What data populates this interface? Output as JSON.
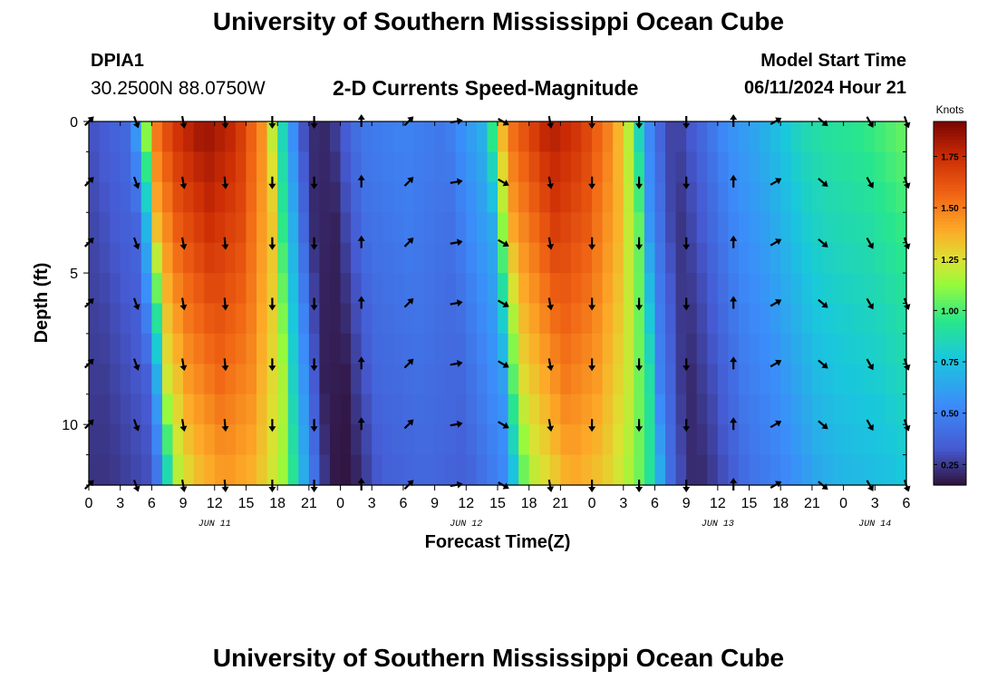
{
  "page": {
    "title": "University of Southern Mississippi Ocean Cube",
    "footer_title": "University of Southern Mississippi Ocean Cube"
  },
  "header": {
    "station_id": "DPIA1",
    "coordinates": "30.2500N  88.0750W",
    "plot_title": "2-D Currents Speed-Magnitude",
    "model_start_label": "Model Start Time",
    "model_start_value": "06/11/2024 Hour 21"
  },
  "chart_data": {
    "type": "heatmap",
    "title": "2-D Currents Speed-Magnitude",
    "xlabel": "Forecast Time(Z)",
    "ylabel": "Depth (ft)",
    "x_hours_range": [
      0,
      78
    ],
    "ylim": [
      0,
      12
    ],
    "y_ticks": [
      0,
      5,
      10
    ],
    "x_tick_labels": [
      "0",
      "3",
      "6",
      "9",
      "12",
      "15",
      "18",
      "21",
      "0",
      "3",
      "6",
      "9",
      "12",
      "15",
      "18",
      "21",
      "0",
      "3",
      "6",
      "9",
      "12",
      "15",
      "18",
      "21",
      "0",
      "3",
      "6"
    ],
    "date_labels": [
      {
        "label": "JUN 11",
        "hour": 12
      },
      {
        "label": "JUN 12",
        "hour": 36
      },
      {
        "label": "JUN 13",
        "hour": 60
      },
      {
        "label": "JUN 14",
        "hour": 75
      }
    ],
    "colorbar": {
      "unit": "Knots",
      "range": [
        0.15,
        1.92
      ],
      "ticks": [
        "0.25",
        "0.50",
        "0.75",
        "1.00",
        "1.25",
        "1.50",
        "1.75"
      ]
    },
    "surface_speed_knots_by_hour": [
      [
        0,
        0.3
      ],
      [
        4,
        0.4
      ],
      [
        5,
        0.75
      ],
      [
        6,
        1.45
      ],
      [
        8,
        1.7
      ],
      [
        11,
        1.85
      ],
      [
        14,
        1.75
      ],
      [
        17,
        1.4
      ],
      [
        18,
        1.0
      ],
      [
        19,
        0.7
      ],
      [
        20,
        0.4
      ],
      [
        21,
        0.22
      ],
      [
        23,
        0.2
      ],
      [
        24,
        0.3
      ],
      [
        26,
        0.45
      ],
      [
        30,
        0.5
      ],
      [
        34,
        0.45
      ],
      [
        38,
        0.7
      ],
      [
        39,
        1.2
      ],
      [
        40,
        1.5
      ],
      [
        44,
        1.8
      ],
      [
        47,
        1.7
      ],
      [
        50,
        1.45
      ],
      [
        52,
        1.1
      ],
      [
        53,
        0.6
      ],
      [
        55,
        0.3
      ],
      [
        56,
        0.25
      ],
      [
        58,
        0.35
      ],
      [
        61,
        0.55
      ],
      [
        64,
        0.65
      ],
      [
        66,
        0.75
      ],
      [
        68,
        0.85
      ],
      [
        70,
        0.9
      ],
      [
        74,
        0.95
      ],
      [
        78,
        1.05
      ]
    ],
    "arrow_rows_depth_ft": [
      0,
      2,
      4,
      6,
      8,
      10,
      12
    ],
    "arrow_columns_hour": [
      0,
      4.5,
      9,
      13,
      17.5,
      21.5,
      26,
      30.5,
      35,
      39.5,
      44,
      48,
      52.5,
      57,
      61.5,
      65.5,
      70,
      74.5,
      78
    ],
    "arrow_direction_deg_by_column": [
      45,
      160,
      170,
      175,
      180,
      180,
      0,
      45,
      80,
      120,
      170,
      180,
      180,
      180,
      0,
      60,
      130,
      150,
      160
    ]
  }
}
